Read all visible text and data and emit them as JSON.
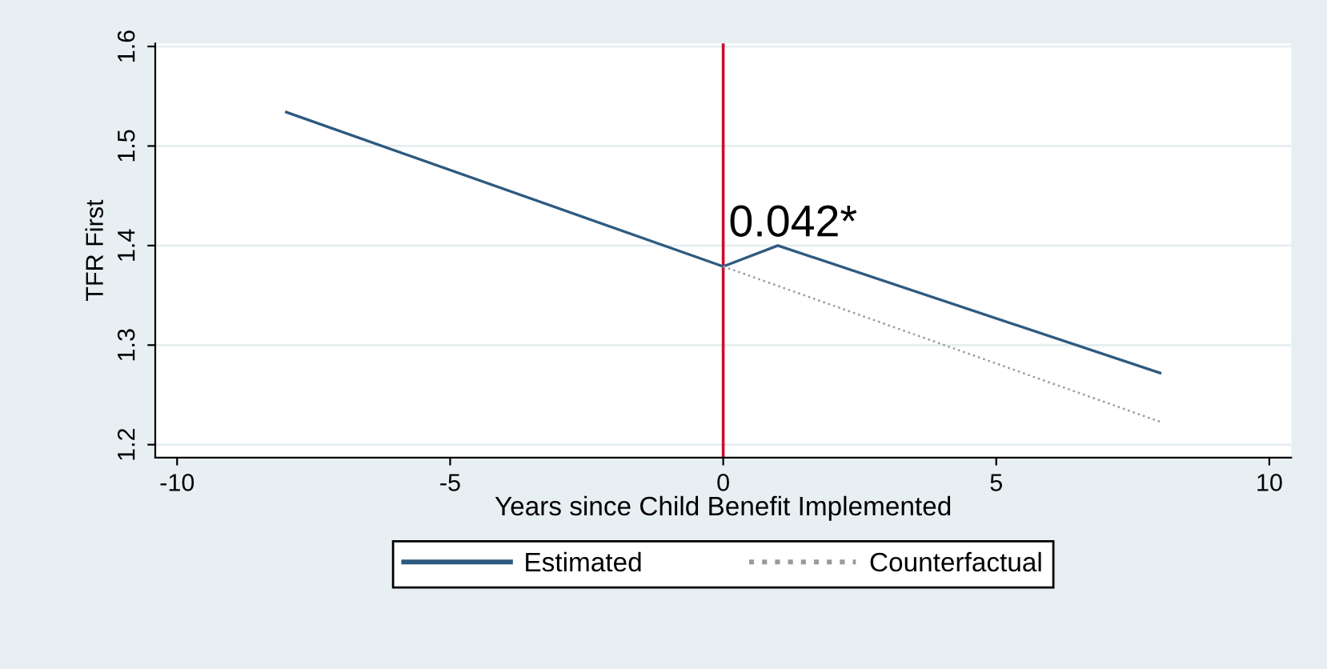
{
  "chart_data": {
    "type": "line",
    "xlabel": "Years since Child Benefit Implemented",
    "ylabel": "TFR First",
    "series": [
      {
        "name": "Estimated",
        "color": "#2e5a80",
        "line_style": "solid",
        "x": [
          -8,
          0,
          1,
          8
        ],
        "values": [
          1.534,
          1.379,
          1.4,
          1.272
        ]
      },
      {
        "name": "Counterfactual",
        "color": "#9a9a9a",
        "line_style": "dotted",
        "x": [
          0,
          8
        ],
        "values": [
          1.379,
          1.223
        ]
      }
    ],
    "xlim": [
      -10.4,
      10.4
    ],
    "ylim": [
      1.187,
      1.603
    ],
    "xticks": [
      -10,
      -5,
      0,
      5,
      10
    ],
    "yticks": [
      1.2,
      1.3,
      1.4,
      1.5,
      1.6
    ],
    "ref_lines": [
      {
        "axis": "x",
        "value": 0,
        "color": "#c8102e"
      }
    ],
    "annotations": [
      {
        "text": "0.042*",
        "x": 0.1,
        "y": 1.4
      }
    ],
    "grid": "y",
    "legend": "bottom",
    "marker": "none"
  }
}
